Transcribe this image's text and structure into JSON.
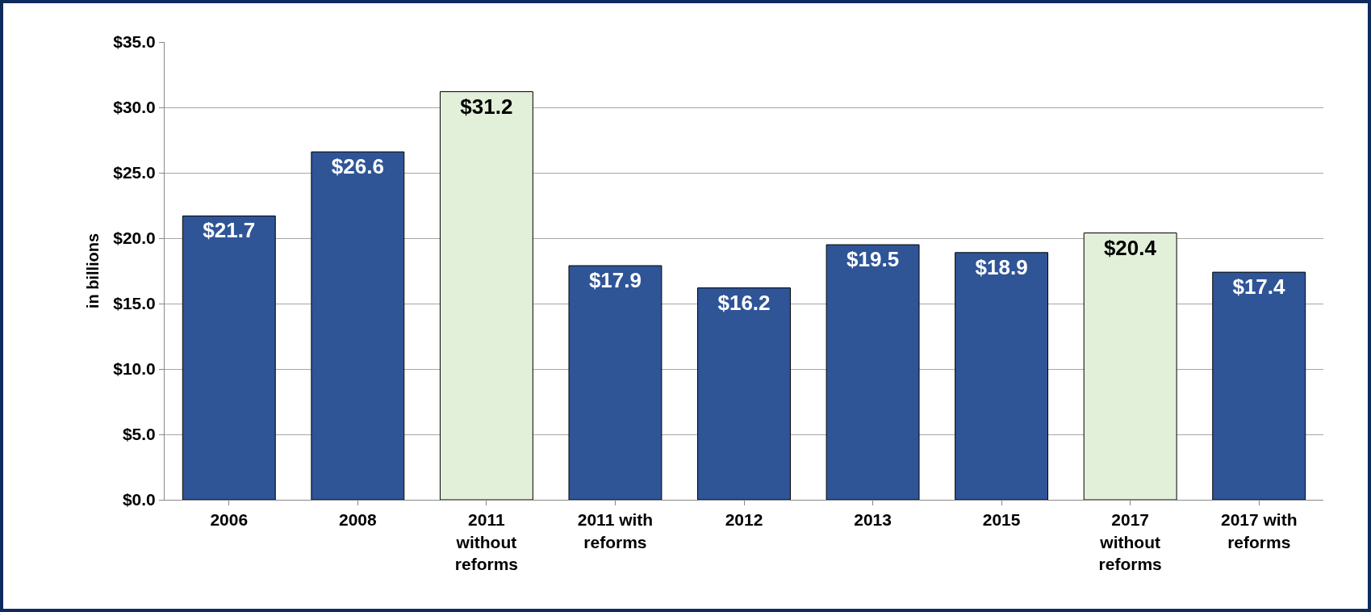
{
  "chart_data": {
    "type": "bar",
    "ylabel": "in billions",
    "categories": [
      "2006",
      "2008",
      "2011 without reforms",
      "2011 with reforms",
      "2012",
      "2013",
      "2015",
      "2017 without reforms",
      "2017 with reforms"
    ],
    "values": [
      21.7,
      26.6,
      31.2,
      17.9,
      16.2,
      19.5,
      18.9,
      20.4,
      17.4
    ],
    "colors": [
      "#2f5597",
      "#2f5597",
      "#e2efd9",
      "#2f5597",
      "#2f5597",
      "#2f5597",
      "#2f5597",
      "#e2efd9",
      "#2f5597"
    ],
    "value_labels": [
      "$21.7",
      "$26.6",
      "$31.2",
      "$17.9",
      "$16.2",
      "$19.5",
      "$18.9",
      "$20.4",
      "$17.4"
    ],
    "ylim": [
      0,
      35
    ],
    "yticks": [
      {
        "value": 0,
        "label": "$0.0"
      },
      {
        "value": 5,
        "label": "$5.0"
      },
      {
        "value": 10,
        "label": "$10.0"
      },
      {
        "value": 15,
        "label": "$15.0"
      },
      {
        "value": 20,
        "label": "$20.0"
      },
      {
        "value": 25,
        "label": "$25.0"
      },
      {
        "value": 30,
        "label": "$30.0"
      },
      {
        "value": 35,
        "label": "$35.0"
      }
    ],
    "grid": "y"
  }
}
